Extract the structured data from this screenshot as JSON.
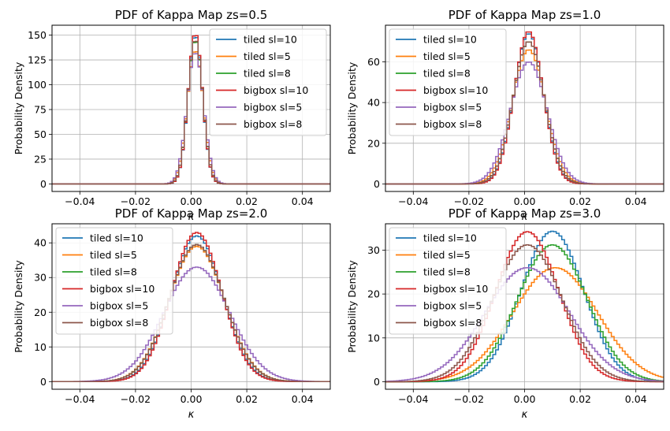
{
  "figure": {
    "kappa_symbol": "κ"
  },
  "chart_data": [
    {
      "type": "histogram-step",
      "title": "PDF of Kappa Map zs=0.5",
      "xlabel": "κ",
      "ylabel": "Probability Density",
      "xlim": [
        -0.05,
        0.05
      ],
      "ylim": [
        -7.6,
        160
      ],
      "xticks": [
        -0.04,
        -0.02,
        0.0,
        0.02,
        0.04
      ],
      "xtick_labels": [
        "−0.04",
        "−0.02",
        "0.00",
        "0.02",
        "0.04"
      ],
      "yticks": [
        0,
        25,
        50,
        75,
        100,
        125,
        150
      ],
      "ytick_labels": [
        "0",
        "25",
        "50",
        "75",
        "100",
        "125",
        "150"
      ],
      "grid": true,
      "legend_position": "top-right",
      "series": [
        {
          "name": "tiled sl=10",
          "color": "#1f77b4",
          "peak": 150,
          "mean": 0.0015,
          "std": 0.0026
        },
        {
          "name": "tiled sl=5",
          "color": "#ff7f0e",
          "peak": 135,
          "mean": 0.0015,
          "std": 0.0029
        },
        {
          "name": "tiled sl=8",
          "color": "#2ca02c",
          "peak": 145,
          "mean": 0.0015,
          "std": 0.0027
        },
        {
          "name": "bigbox sl=10",
          "color": "#d62728",
          "peak": 152,
          "mean": 0.0015,
          "std": 0.0026
        },
        {
          "name": "bigbox sl=5",
          "color": "#9467bd",
          "peak": 133,
          "mean": 0.0015,
          "std": 0.003
        },
        {
          "name": "bigbox sl=8",
          "color": "#8c564b",
          "peak": 146,
          "mean": 0.0015,
          "std": 0.0027
        }
      ]
    },
    {
      "type": "histogram-step",
      "title": "PDF of Kappa Map zs=1.0",
      "xlabel": "κ",
      "ylabel": "Probability Density",
      "xlim": [
        -0.05,
        0.05
      ],
      "ylim": [
        -3.7,
        78
      ],
      "xticks": [
        -0.04,
        -0.02,
        0.0,
        0.02,
        0.04
      ],
      "xtick_labels": [
        "−0.04",
        "−0.02",
        "0.00",
        "0.02",
        "0.04"
      ],
      "yticks": [
        0,
        20,
        40,
        60
      ],
      "ytick_labels": [
        "0",
        "20",
        "40",
        "60"
      ],
      "grid": true,
      "legend_position": "top-left",
      "series": [
        {
          "name": "tiled sl=10",
          "color": "#1f77b4",
          "peak": 74,
          "mean": 0.0015,
          "std": 0.0053
        },
        {
          "name": "tiled sl=5",
          "color": "#ff7f0e",
          "peak": 66,
          "mean": 0.0015,
          "std": 0.006
        },
        {
          "name": "tiled sl=8",
          "color": "#2ca02c",
          "peak": 70,
          "mean": 0.0015,
          "std": 0.0056
        },
        {
          "name": "bigbox sl=10",
          "color": "#d62728",
          "peak": 75,
          "mean": 0.0015,
          "std": 0.0052
        },
        {
          "name": "bigbox sl=5",
          "color": "#9467bd",
          "peak": 60,
          "mean": 0.0015,
          "std": 0.0066
        },
        {
          "name": "bigbox sl=8",
          "color": "#8c564b",
          "peak": 70,
          "mean": 0.0015,
          "std": 0.0056
        }
      ]
    },
    {
      "type": "histogram-step",
      "title": "PDF of Kappa Map zs=2.0",
      "xlabel": "κ",
      "ylabel": "Probability Density",
      "xlim": [
        -0.05,
        0.05
      ],
      "ylim": [
        -2.2,
        45.5
      ],
      "xticks": [
        -0.04,
        -0.02,
        0.0,
        0.02,
        0.04
      ],
      "xtick_labels": [
        "−0.04",
        "−0.02",
        "0.00",
        "0.02",
        "0.04"
      ],
      "yticks": [
        0,
        10,
        20,
        30,
        40
      ],
      "ytick_labels": [
        "0",
        "10",
        "20",
        "30",
        "40"
      ],
      "grid": true,
      "legend_position": "top-left",
      "series": [
        {
          "name": "tiled sl=10",
          "color": "#1f77b4",
          "peak": 42,
          "mean": 0.002,
          "std": 0.0092
        },
        {
          "name": "tiled sl=5",
          "color": "#ff7f0e",
          "peak": 39,
          "mean": 0.002,
          "std": 0.01
        },
        {
          "name": "tiled sl=8",
          "color": "#2ca02c",
          "peak": 39.5,
          "mean": 0.002,
          "std": 0.0099
        },
        {
          "name": "bigbox sl=10",
          "color": "#d62728",
          "peak": 43,
          "mean": 0.002,
          "std": 0.009
        },
        {
          "name": "bigbox sl=5",
          "color": "#9467bd",
          "peak": 33,
          "mean": 0.002,
          "std": 0.0118
        },
        {
          "name": "bigbox sl=8",
          "color": "#8c564b",
          "peak": 39.5,
          "mean": 0.002,
          "std": 0.0099
        }
      ]
    },
    {
      "type": "histogram-step",
      "title": "PDF of Kappa Map zs=3.0",
      "xlabel": "κ",
      "ylabel": "Probability Density",
      "xlim": [
        -0.05,
        0.05
      ],
      "ylim": [
        -1.7,
        36
      ],
      "xticks": [
        -0.04,
        -0.02,
        0.0,
        0.02,
        0.04
      ],
      "xtick_labels": [
        "−0.04",
        "−0.02",
        "0.00",
        "0.02",
        "0.04"
      ],
      "yticks": [
        0,
        10,
        20,
        30
      ],
      "ytick_labels": [
        "0",
        "10",
        "20",
        "30"
      ],
      "grid": true,
      "legend_position": "top-left",
      "series": [
        {
          "name": "tiled sl=10",
          "color": "#1f77b4",
          "peak": 34.3,
          "mean": 0.01,
          "std": 0.0113
        },
        {
          "name": "tiled sl=5",
          "color": "#ff7f0e",
          "peak": 26,
          "mean": 0.011,
          "std": 0.0152
        },
        {
          "name": "tiled sl=8",
          "color": "#2ca02c",
          "peak": 31.2,
          "mean": 0.01,
          "std": 0.0125
        },
        {
          "name": "bigbox sl=10",
          "color": "#d62728",
          "peak": 34.2,
          "mean": 0.001,
          "std": 0.0113
        },
        {
          "name": "bigbox sl=5",
          "color": "#9467bd",
          "peak": 26,
          "mean": 0.001,
          "std": 0.0152
        },
        {
          "name": "bigbox sl=8",
          "color": "#8c564b",
          "peak": 31.2,
          "mean": 0.001,
          "std": 0.0125
        }
      ]
    }
  ]
}
